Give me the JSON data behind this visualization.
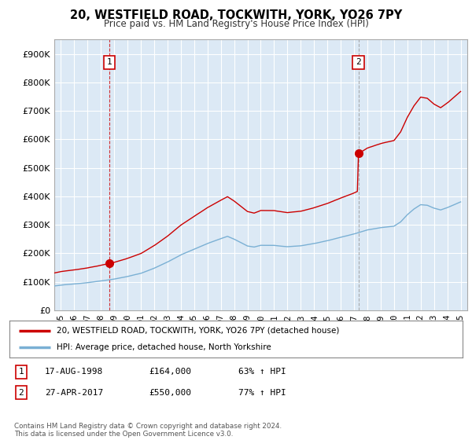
{
  "title": "20, WESTFIELD ROAD, TOCKWITH, YORK, YO26 7PY",
  "subtitle": "Price paid vs. HM Land Registry's House Price Index (HPI)",
  "ylabel_ticks": [
    "£0",
    "£100K",
    "£200K",
    "£300K",
    "£400K",
    "£500K",
    "£600K",
    "£700K",
    "£800K",
    "£900K"
  ],
  "ytick_values": [
    0,
    100000,
    200000,
    300000,
    400000,
    500000,
    600000,
    700000,
    800000,
    900000
  ],
  "ylim": [
    0,
    950000
  ],
  "xlim_start": 1994.5,
  "xlim_end": 2025.5,
  "sale1_x": 1998.63,
  "sale1_y": 164000,
  "sale2_x": 2017.33,
  "sale2_y": 550000,
  "sale1_label": "1",
  "sale2_label": "2",
  "legend_line1": "20, WESTFIELD ROAD, TOCKWITH, YORK, YO26 7PY (detached house)",
  "legend_line2": "HPI: Average price, detached house, North Yorkshire",
  "table_row1": [
    "1",
    "17-AUG-1998",
    "£164,000",
    "63% ↑ HPI"
  ],
  "table_row2": [
    "2",
    "27-APR-2017",
    "£550,000",
    "77% ↑ HPI"
  ],
  "footnote": "Contains HM Land Registry data © Crown copyright and database right 2024.\nThis data is licensed under the Open Government Licence v3.0.",
  "line_color_red": "#cc0000",
  "line_color_blue": "#7ab0d4",
  "dashed1_color": "#cc0000",
  "dashed2_color": "#999999",
  "plot_bg_color": "#dce9f5",
  "background_color": "#ffffff",
  "grid_color": "#ffffff",
  "xtick_labels": [
    "95",
    "96",
    "97",
    "98",
    "99",
    "00",
    "01",
    "02",
    "03",
    "04",
    "05",
    "06",
    "07",
    "08",
    "09",
    "10",
    "11",
    "12",
    "13",
    "14",
    "15",
    "16",
    "17",
    "18",
    "19",
    "20",
    "21",
    "22",
    "23",
    "24",
    "25"
  ],
  "xtick_years": [
    1995,
    1996,
    1997,
    1998,
    1999,
    2000,
    2001,
    2002,
    2003,
    2004,
    2005,
    2006,
    2007,
    2008,
    2009,
    2010,
    2011,
    2012,
    2013,
    2014,
    2015,
    2016,
    2017,
    2018,
    2019,
    2020,
    2021,
    2022,
    2023,
    2024,
    2025
  ]
}
